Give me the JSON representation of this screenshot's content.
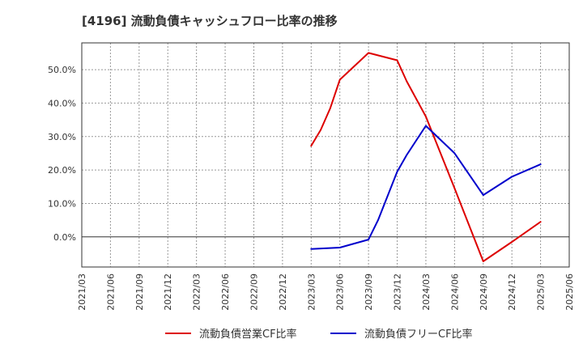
{
  "chart_data": {
    "type": "line",
    "title": "[4196]  流動負債キャッシュフロー比率の推移",
    "xlabel": "",
    "ylabel": "",
    "x_ticks": [
      "2021/03",
      "2021/06",
      "2021/09",
      "2021/12",
      "2022/03",
      "2022/06",
      "2022/09",
      "2022/12",
      "2023/03",
      "2023/06",
      "2023/09",
      "2023/12",
      "2024/03",
      "2024/06",
      "2024/09",
      "2024/12",
      "2025/03",
      "2025/06"
    ],
    "y_ticks": [
      "0.0%",
      "10.0%",
      "20.0%",
      "30.0%",
      "40.0%",
      "50.0%"
    ],
    "y_tick_values": [
      0,
      10,
      20,
      30,
      40,
      50
    ],
    "ylim": [
      -9,
      58
    ],
    "grid": true,
    "legend_position": "bottom",
    "series": [
      {
        "name": "流動負債営業CF比率",
        "color": "#dd0000",
        "points": [
          {
            "x": "2023/03",
            "y": 27.2
          },
          {
            "x": "2023/04",
            "y": 32.0
          },
          {
            "x": "2023/05",
            "y": 38.5
          },
          {
            "x": "2023/06",
            "y": 47.0
          },
          {
            "x": "2023/09",
            "y": 55.0
          },
          {
            "x": "2023/12",
            "y": 52.8
          },
          {
            "x": "2024/01",
            "y": 46.5
          },
          {
            "x": "2024/03",
            "y": 36.0
          },
          {
            "x": "2024/06",
            "y": 14.5
          },
          {
            "x": "2024/09",
            "y": -7.3
          },
          {
            "x": "2024/12",
            "y": -1.5
          },
          {
            "x": "2025/03",
            "y": 4.5
          }
        ]
      },
      {
        "name": "流動負債フリーCF比率",
        "color": "#0000cc",
        "points": [
          {
            "x": "2023/03",
            "y": -3.6
          },
          {
            "x": "2023/06",
            "y": -3.2
          },
          {
            "x": "2023/09",
            "y": -0.8
          },
          {
            "x": "2023/10",
            "y": 5.0
          },
          {
            "x": "2023/12",
            "y": 19.5
          },
          {
            "x": "2024/01",
            "y": 24.5
          },
          {
            "x": "2024/03",
            "y": 33.2
          },
          {
            "x": "2024/06",
            "y": 25.0
          },
          {
            "x": "2024/09",
            "y": 12.5
          },
          {
            "x": "2024/12",
            "y": 18.0
          },
          {
            "x": "2025/03",
            "y": 21.7
          }
        ]
      }
    ]
  }
}
